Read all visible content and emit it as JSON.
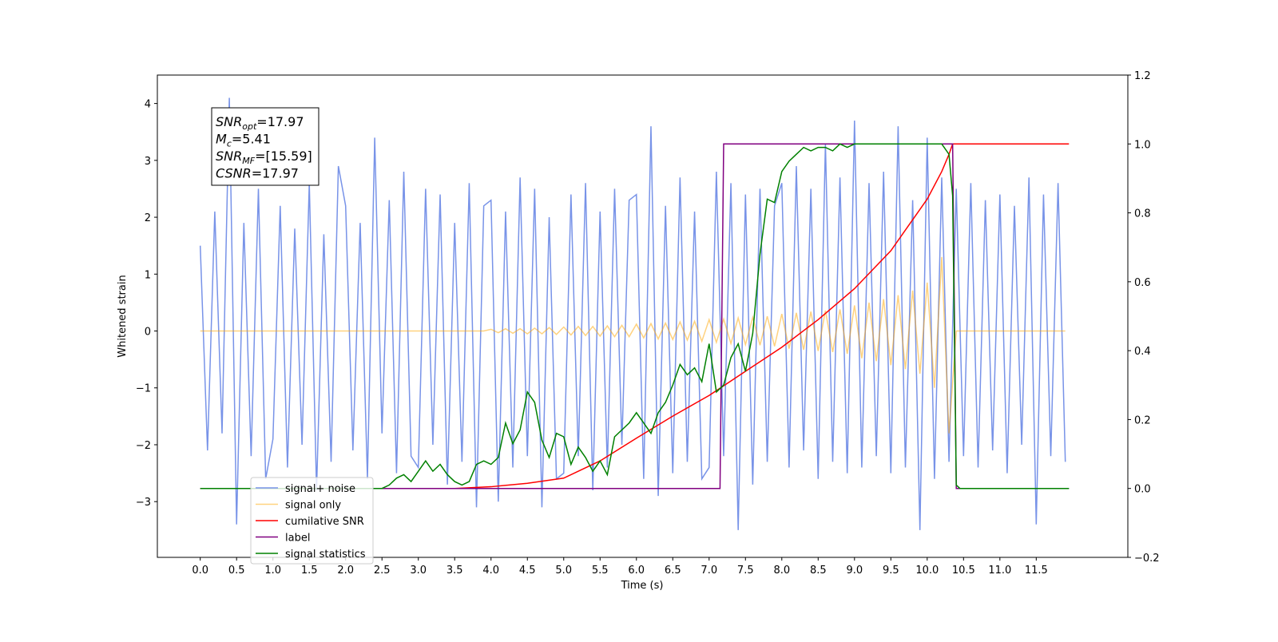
{
  "chart_data": {
    "type": "line",
    "xlabel": "Time (s)",
    "ylabel": "Whitened strain",
    "xlim": [
      -0.59,
      12.76
    ],
    "ylim": [
      -3.98,
      4.5
    ],
    "y2lim": [
      -0.2,
      1.2
    ],
    "xticks": [
      {
        "value": 0,
        "label": "0.0"
      },
      0.5,
      {
        "value": 1,
        "label": "1.0"
      },
      1.5,
      {
        "value": 2,
        "label": "2.0"
      },
      2.5,
      {
        "value": 3,
        "label": "3.0"
      },
      3.5,
      {
        "value": 4,
        "label": "4.0"
      },
      4.5,
      {
        "value": 5,
        "label": "5.0"
      },
      5.5,
      {
        "value": 6,
        "label": "6.0"
      },
      6.5,
      {
        "value": 7,
        "label": "7.0"
      },
      7.5,
      {
        "value": 8,
        "label": "8.0"
      },
      8.5,
      {
        "value": 9,
        "label": "9.0"
      },
      9.5,
      {
        "value": 10,
        "label": "10.0"
      },
      10.5,
      {
        "value": 11,
        "label": "11.0"
      },
      11.5
    ],
    "yticks": [
      {
        "value": -3,
        "label": "−3"
      },
      {
        "value": -2,
        "label": "−2"
      },
      {
        "value": -1,
        "label": "−1"
      },
      0,
      1,
      2,
      3,
      4
    ],
    "y2ticks": [
      {
        "value": -0.2,
        "label": "−0.2"
      },
      {
        "value": 0,
        "label": "0.0"
      },
      0.2,
      0.4,
      0.6,
      0.8,
      {
        "value": 1,
        "label": "1.0"
      },
      1.2
    ],
    "legend": "lower left",
    "annotation": [
      {
        "base": "SNR",
        "sub": "opt",
        "text": "=17.97"
      },
      {
        "base": "M",
        "sub": "c",
        "text": "=5.41"
      },
      {
        "base": "SNR",
        "sub": "MF",
        "text": "=[15.59]"
      },
      {
        "base": "CSNR",
        "text": "=17.97"
      }
    ],
    "x": [
      0,
      0.1,
      0.2,
      0.3,
      0.4,
      0.5,
      0.6,
      0.7,
      0.8,
      0.9,
      1,
      1.1,
      1.2,
      1.3,
      1.4,
      1.5,
      1.6,
      1.7,
      1.8,
      1.9,
      2,
      2.1,
      2.2,
      2.3,
      2.4,
      2.5,
      2.6,
      2.7,
      2.8,
      2.9,
      3,
      3.1,
      3.2,
      3.3,
      3.4,
      3.5,
      3.6,
      3.7,
      3.8,
      3.9,
      4,
      4.1,
      4.2,
      4.3,
      4.4,
      4.5,
      4.6,
      4.7,
      4.8,
      4.9,
      5,
      5.1,
      5.2,
      5.3,
      5.4,
      5.5,
      5.6,
      5.7,
      5.8,
      5.9,
      6,
      6.1,
      6.2,
      6.3,
      6.4,
      6.5,
      6.6,
      6.7,
      6.8,
      6.9,
      7,
      7.1,
      7.2,
      7.3,
      7.4,
      7.5,
      7.6,
      7.7,
      7.8,
      7.9,
      8,
      8.1,
      8.2,
      8.3,
      8.4,
      8.5,
      8.6,
      8.7,
      8.8,
      8.9,
      9,
      9.1,
      9.2,
      9.3,
      9.4,
      9.5,
      9.6,
      9.7,
      9.8,
      9.9,
      10,
      10.1,
      10.2,
      10.3,
      10.4,
      10.5,
      10.6,
      10.7,
      10.8,
      10.9,
      11,
      11.1,
      11.2,
      11.3,
      11.4,
      11.5,
      11.6,
      11.7,
      11.8,
      11.9
    ],
    "series": [
      {
        "name": "signal+ noise",
        "color": "#7893e8",
        "values": [
          1.5,
          -2.1,
          2.1,
          -1.8,
          4.1,
          -3.4,
          1.9,
          -2.2,
          2.5,
          -2.6,
          -1.9,
          2.2,
          -2.4,
          1.8,
          -2.0,
          2.6,
          -2.8,
          1.7,
          -2.3,
          2.9,
          2.2,
          -2.1,
          1.9,
          -2.6,
          3.4,
          -1.8,
          2.3,
          -2.5,
          2.8,
          -2.2,
          -2.4,
          2.5,
          -2.0,
          2.4,
          -2.7,
          1.9,
          -2.3,
          2.6,
          -3.1,
          2.2,
          2.3,
          -3.0,
          2.1,
          -2.4,
          2.7,
          -2.2,
          2.5,
          -3.1,
          2.0,
          -2.6,
          -2.5,
          2.4,
          -2.2,
          2.6,
          -2.8,
          2.1,
          -2.4,
          2.5,
          -2.0,
          2.3,
          2.4,
          -2.6,
          3.6,
          -2.9,
          2.2,
          -2.5,
          2.7,
          -2.3,
          2.1,
          -2.6,
          -2.4,
          2.8,
          -2.2,
          2.6,
          -3.5,
          2.4,
          -2.7,
          2.5,
          -2.3,
          2.2,
          2.6,
          -2.4,
          2.9,
          -2.1,
          2.5,
          -2.6,
          3.3,
          -2.3,
          2.7,
          -2.5,
          3.7,
          -2.4,
          2.6,
          -2.2,
          2.8,
          -2.5,
          3.6,
          -2.4,
          2.3,
          -3.5,
          3.4,
          -2.6,
          2.7,
          -2.3,
          2.5,
          -2.2,
          2.6,
          -2.4,
          2.3,
          -2.1,
          2.4,
          -2.5,
          2.2,
          -2.0,
          2.7,
          -3.4,
          2.4,
          -2.2,
          2.6,
          -2.3
        ]
      },
      {
        "name": "signal only",
        "color": "#ffa500",
        "values": [
          0,
          0,
          0,
          0,
          0,
          0,
          0,
          0,
          0,
          0,
          0,
          0,
          0,
          0,
          0,
          0,
          0,
          0,
          0,
          0,
          0,
          0,
          0,
          0,
          0,
          0,
          0,
          0,
          0,
          0,
          0,
          0,
          0,
          0,
          0,
          0,
          0,
          0,
          0,
          0,
          0.03,
          -0.03,
          0.04,
          -0.04,
          0.04,
          -0.05,
          0.05,
          -0.05,
          0.06,
          -0.06,
          0.07,
          -0.07,
          0.08,
          -0.08,
          0.08,
          -0.09,
          0.09,
          -0.1,
          0.1,
          -0.1,
          0.12,
          -0.12,
          0.13,
          -0.14,
          0.14,
          -0.15,
          0.16,
          -0.16,
          0.17,
          -0.18,
          0.2,
          -0.2,
          0.21,
          -0.22,
          0.23,
          -0.24,
          0.24,
          -0.25,
          0.26,
          -0.27,
          0.3,
          -0.31,
          0.32,
          -0.33,
          0.34,
          -0.35,
          0.36,
          -0.37,
          0.38,
          -0.4,
          0.45,
          -0.48,
          0.5,
          -0.53,
          0.56,
          -0.6,
          0.63,
          -0.67,
          0.71,
          -0.75,
          0.85,
          -1.0,
          1.3,
          -1.8,
          0,
          0,
          0,
          0,
          0,
          0,
          0,
          0,
          0,
          0,
          0,
          0,
          0,
          0,
          0,
          0
        ]
      },
      {
        "name": "cumilative SNR",
        "color": "#ff0000",
        "axis": "y2",
        "x": [
          0,
          3.5,
          4,
          4.5,
          5,
          5.5,
          6,
          6.5,
          7,
          7.5,
          8,
          8.5,
          9,
          9.5,
          10,
          10.2,
          10.3,
          10.35,
          10.4,
          11.95
        ],
        "values": [
          0,
          0,
          0.005,
          0.015,
          0.03,
          0.08,
          0.146,
          0.21,
          0.27,
          0.34,
          0.41,
          0.49,
          0.58,
          0.69,
          0.84,
          0.92,
          0.97,
          1.0,
          1.0,
          1.0
        ]
      },
      {
        "name": "label",
        "color": "#800080",
        "axis": "y2",
        "x": [
          0,
          7.15,
          7.2,
          10.35,
          10.4,
          11.95
        ],
        "values": [
          0,
          0,
          1,
          1,
          0,
          0
        ]
      },
      {
        "name": "signal statistics",
        "color": "#008000",
        "axis": "y2",
        "x": [
          0,
          2.5,
          2.6,
          2.7,
          2.8,
          2.9,
          3,
          3.1,
          3.2,
          3.3,
          3.4,
          3.5,
          3.6,
          3.7,
          3.8,
          3.9,
          4,
          4.1,
          4.2,
          4.3,
          4.4,
          4.5,
          4.6,
          4.7,
          4.8,
          4.9,
          5,
          5.1,
          5.2,
          5.3,
          5.4,
          5.5,
          5.6,
          5.7,
          5.8,
          5.9,
          6,
          6.1,
          6.2,
          6.3,
          6.4,
          6.5,
          6.6,
          6.7,
          6.8,
          6.9,
          7,
          7.1,
          7.2,
          7.3,
          7.4,
          7.5,
          7.6,
          7.7,
          7.8,
          7.9,
          8,
          8.1,
          8.2,
          8.3,
          8.4,
          8.5,
          8.6,
          8.7,
          8.8,
          8.9,
          9,
          10.2,
          10.3,
          10.35,
          10.4,
          10.45,
          11.95
        ],
        "values": [
          0,
          0,
          0.01,
          0.03,
          0.04,
          0.02,
          0.05,
          0.08,
          0.05,
          0.07,
          0.04,
          0.02,
          0.01,
          0.02,
          0.07,
          0.08,
          0.07,
          0.09,
          0.19,
          0.13,
          0.17,
          0.28,
          0.25,
          0.14,
          0.09,
          0.16,
          0.15,
          0.07,
          0.12,
          0.09,
          0.05,
          0.08,
          0.04,
          0.15,
          0.17,
          0.19,
          0.22,
          0.19,
          0.16,
          0.22,
          0.25,
          0.3,
          0.36,
          0.33,
          0.35,
          0.31,
          0.42,
          0.28,
          0.3,
          0.38,
          0.42,
          0.34,
          0.45,
          0.68,
          0.84,
          0.83,
          0.92,
          0.95,
          0.97,
          0.99,
          0.98,
          0.99,
          0.99,
          0.98,
          1.0,
          0.99,
          1.0,
          1.0,
          0.97,
          0.85,
          0.01,
          0,
          0
        ]
      }
    ]
  }
}
